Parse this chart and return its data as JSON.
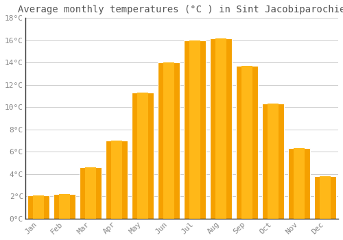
{
  "title": "Average monthly temperatures (°C ) in Sint Jacobiparochie",
  "months": [
    "Jan",
    "Feb",
    "Mar",
    "Apr",
    "May",
    "Jun",
    "Jul",
    "Aug",
    "Sep",
    "Oct",
    "Nov",
    "Dec"
  ],
  "temperatures": [
    2.1,
    2.2,
    4.6,
    7.0,
    11.3,
    14.0,
    16.0,
    16.2,
    13.7,
    10.3,
    6.3,
    3.8
  ],
  "bar_color_center": "#FFB818",
  "bar_color_edge": "#F5A000",
  "background_color": "#FFFFFF",
  "grid_color": "#CCCCCC",
  "text_color": "#888888",
  "title_color": "#555555",
  "ylim": [
    0,
    18
  ],
  "yticks": [
    0,
    2,
    4,
    6,
    8,
    10,
    12,
    14,
    16,
    18
  ],
  "ytick_labels": [
    "0°C",
    "2°C",
    "4°C",
    "6°C",
    "8°C",
    "10°C",
    "12°C",
    "14°C",
    "16°C",
    "18°C"
  ],
  "title_fontsize": 10,
  "tick_fontsize": 8,
  "font_family": "monospace",
  "bar_width": 0.85
}
